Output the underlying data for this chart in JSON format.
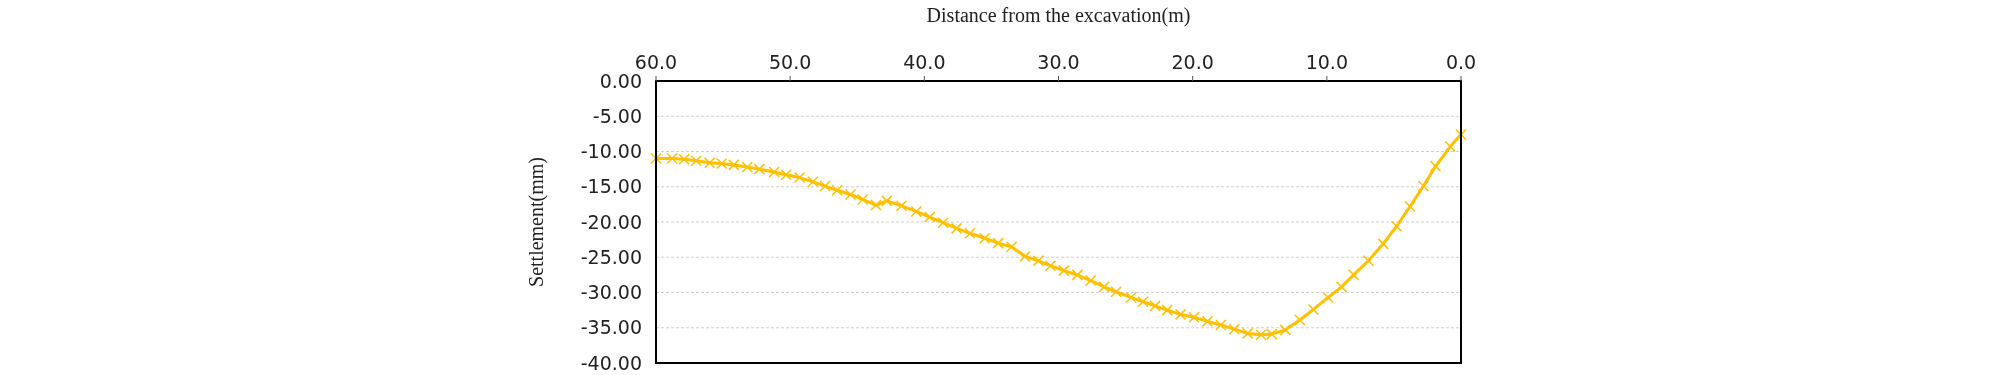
{
  "chart_data": {
    "type": "line",
    "xlabel": "Distance from the excavation(m)",
    "ylabel": "Settlement(mm)",
    "xlim": [
      60,
      0
    ],
    "ylim": [
      -40,
      0
    ],
    "xticks": [
      {
        "value": 60,
        "label": "60.0"
      },
      {
        "value": 50,
        "label": "50.0"
      },
      {
        "value": 40,
        "label": "40.0"
      },
      {
        "value": 30,
        "label": "30.0"
      },
      {
        "value": 20,
        "label": "20.0"
      },
      {
        "value": 10,
        "label": "10.0"
      },
      {
        "value": 0,
        "label": "0.0"
      }
    ],
    "yticks": [
      {
        "value": 0,
        "label": "0.00"
      },
      {
        "value": -5,
        "label": "-5.00"
      },
      {
        "value": -10,
        "label": "-10.00"
      },
      {
        "value": -15,
        "label": "-15.00"
      },
      {
        "value": -20,
        "label": "-20.00"
      },
      {
        "value": -25,
        "label": "-25.00"
      },
      {
        "value": -30,
        "label": "-30.00"
      },
      {
        "value": -35,
        "label": "-35.00"
      },
      {
        "value": -40,
        "label": "-40.00"
      }
    ],
    "grid": "y",
    "marker": "cross",
    "line_style": "solid",
    "series": [
      {
        "color": "#ffc000",
        "x": [
          60,
          58.8,
          57.9,
          57.0,
          56.0,
          55.1,
          54.2,
          53.2,
          52.3,
          51.2,
          50.3,
          49.3,
          48.3,
          47.4,
          46.5,
          45.5,
          44.6,
          43.6,
          42.8,
          41.7,
          40.6,
          39.6,
          38.6,
          37.6,
          36.6,
          35.5,
          34.5,
          33.5,
          32.5,
          31.5,
          30.6,
          29.6,
          28.6,
          27.6,
          26.6,
          25.7,
          24.6,
          23.7,
          22.8,
          21.9,
          20.9,
          19.9,
          18.9,
          17.9,
          16.9,
          15.9,
          14.9,
          14.1,
          13.1,
          12.0,
          11.0,
          9.9,
          8.9,
          8.0,
          6.9,
          5.8,
          4.8,
          3.8,
          2.8,
          1.9,
          0.8,
          0
        ],
        "values": [
          -11.0,
          -11.0,
          -11.1,
          -11.3,
          -11.6,
          -11.7,
          -11.9,
          -12.2,
          -12.5,
          -12.9,
          -13.3,
          -13.7,
          -14.3,
          -14.9,
          -15.5,
          -16.1,
          -16.8,
          -17.6,
          -17.0,
          -17.7,
          -18.5,
          -19.3,
          -20.1,
          -20.9,
          -21.6,
          -22.3,
          -23.0,
          -23.5,
          -24.9,
          -25.5,
          -26.2,
          -26.9,
          -27.5,
          -28.3,
          -29.2,
          -29.9,
          -30.7,
          -31.3,
          -31.9,
          -32.5,
          -33.1,
          -33.5,
          -34.1,
          -34.6,
          -35.2,
          -35.8,
          -36.0,
          -35.9,
          -35.3,
          -33.9,
          -32.4,
          -30.7,
          -29.2,
          -27.5,
          -25.5,
          -23.1,
          -20.6,
          -17.8,
          -14.9,
          -12.1,
          -9.3,
          -7.6
        ]
      }
    ]
  }
}
